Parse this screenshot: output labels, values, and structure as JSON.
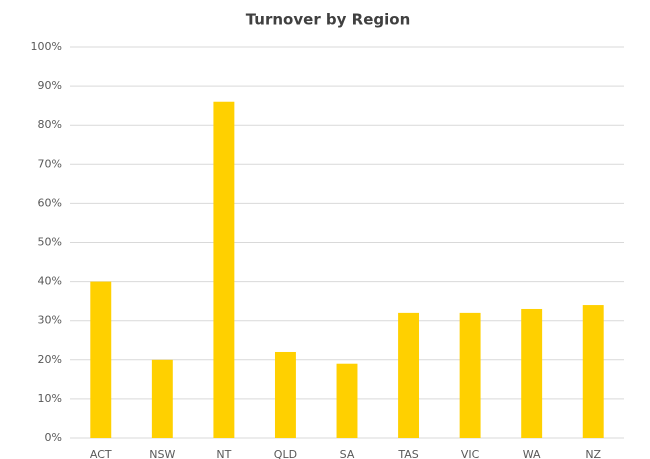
{
  "chart_data": {
    "type": "bar",
    "title": "Turnover by Region",
    "categories": [
      "ACT",
      "NSW",
      "NT",
      "QLD",
      "SA",
      "TAS",
      "VIC",
      "WA",
      "NZ"
    ],
    "values": [
      40,
      20,
      86,
      22,
      19,
      32,
      32,
      33,
      34
    ],
    "color": "#ffd000",
    "ylim": [
      0,
      100
    ],
    "yticks": [
      {
        "value": 0,
        "label": "0%"
      },
      {
        "value": 10,
        "label": "10%"
      },
      {
        "value": 20,
        "label": "20%"
      },
      {
        "value": 30,
        "label": "30%"
      },
      {
        "value": 40,
        "label": "40%"
      },
      {
        "value": 50,
        "label": "50%"
      },
      {
        "value": 60,
        "label": "60%"
      },
      {
        "value": 70,
        "label": "70%"
      },
      {
        "value": 80,
        "label": "80%"
      },
      {
        "value": 90,
        "label": "90%"
      },
      {
        "value": 100,
        "label": "100%"
      }
    ],
    "grid": true
  }
}
